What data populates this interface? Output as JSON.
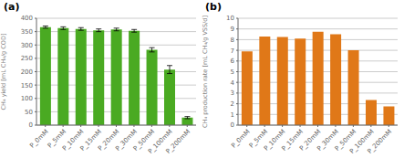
{
  "chart_data": [
    {
      "type": "bar",
      "title": "(a)",
      "categories": [
        "P_0mM",
        "P_5mM",
        "P_10mM",
        "P_15mM",
        "P_20mM",
        "P_30mM",
        "P_50mM",
        "P_100mM",
        "P_200mM"
      ],
      "values": [
        367,
        363,
        360,
        355,
        358,
        353,
        282,
        208,
        28
      ],
      "errors": [
        4,
        5,
        5,
        5,
        5,
        5,
        8,
        15,
        4
      ],
      "color": "#4aaa22",
      "ylabel": "CH₄ yield [mL CH₄/g COD]",
      "ylim": [
        0,
        400
      ],
      "yticks": [
        0,
        50,
        100,
        150,
        200,
        250,
        300,
        350,
        400
      ],
      "grid": true
    },
    {
      "type": "bar",
      "title": "(b)",
      "categories": [
        "P_0mM",
        "P_5mM",
        "P_10mM",
        "P_15mM",
        "P_20mM",
        "P_30mM",
        "P_50mM",
        "P_100mM",
        "P_200mM"
      ],
      "values": [
        6.9,
        8.3,
        8.25,
        8.1,
        8.75,
        8.5,
        7.0,
        2.35,
        1.75
      ],
      "color": "#e07818",
      "ylabel": "CH₄ production rate [mL CH₄/g VSS/d]",
      "ylim": [
        0,
        10
      ],
      "yticks": [
        0,
        1,
        2,
        3,
        4,
        5,
        6,
        7,
        8,
        9,
        10
      ],
      "grid": true
    }
  ]
}
